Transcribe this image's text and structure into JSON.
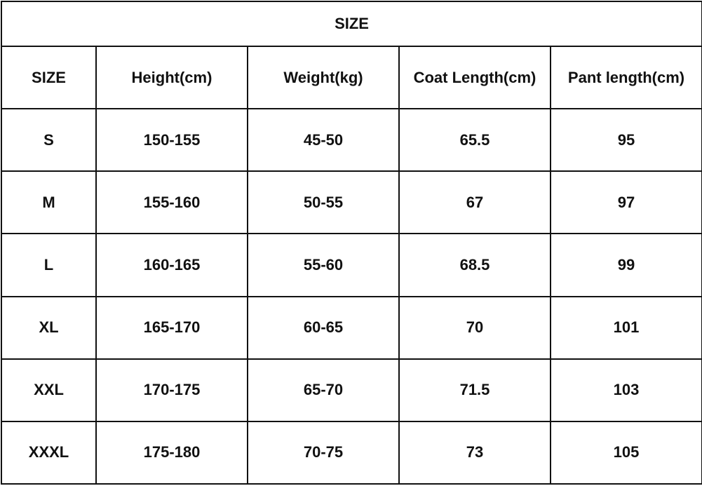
{
  "table": {
    "title": "SIZE",
    "header": [
      "SIZE",
      "Height(cm)",
      "Weight(kg)",
      "Coat Length(cm)",
      "Pant length(cm)"
    ],
    "rows": [
      [
        "S",
        "150-155",
        "45-50",
        65.5,
        95
      ],
      [
        "M",
        "155-160",
        "50-55",
        67,
        97
      ],
      [
        "L",
        "160-165",
        "55-60",
        68.5,
        99
      ],
      [
        "XL",
        "165-170",
        "60-65",
        70,
        101
      ],
      [
        "XXL",
        "170-175",
        "65-70",
        71.5,
        103
      ],
      [
        "XXXL",
        "175-180",
        "70-75",
        73,
        105
      ]
    ]
  }
}
